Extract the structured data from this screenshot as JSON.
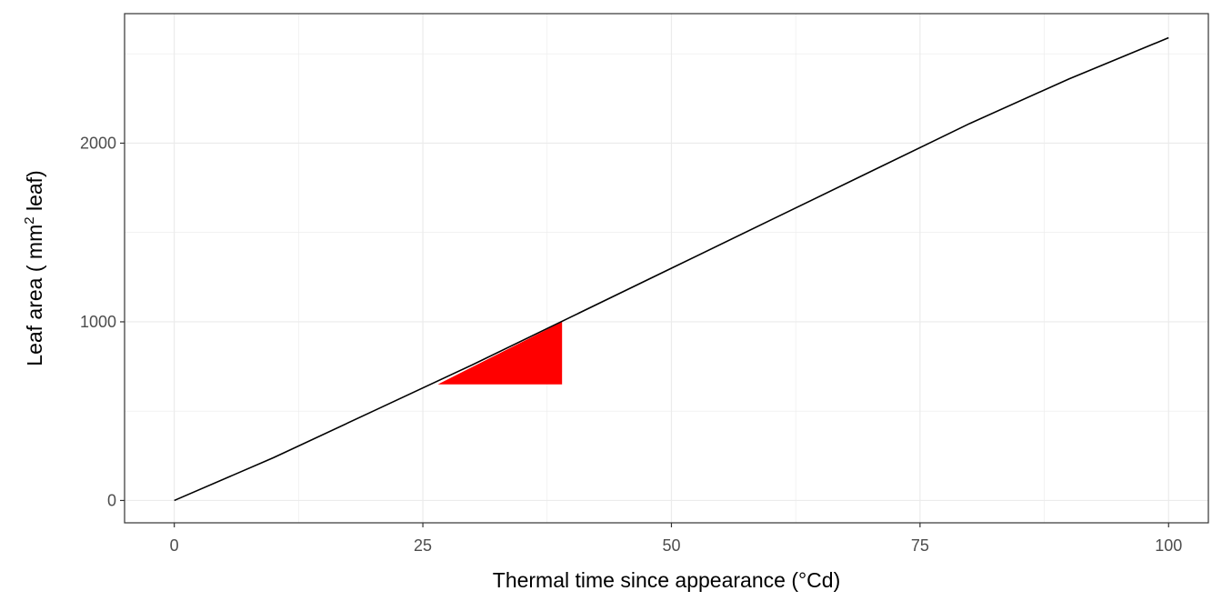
{
  "chart_data": {
    "type": "line",
    "xlabel": "Thermal time since appearance (°Cd)",
    "ylabel": {
      "prefix": "Leaf area ( mm",
      "superscript": "2",
      "suffix": "  leaf)"
    },
    "xlim": [
      -5,
      104
    ],
    "ylim": [
      -125,
      2725
    ],
    "x_ticks": [
      0,
      25,
      50,
      75,
      100
    ],
    "y_ticks": [
      0,
      1000,
      2000
    ],
    "grid": true,
    "series": [
      {
        "color": "#000000",
        "x": [
          0,
          10,
          20,
          30,
          40,
          50,
          60,
          70,
          80,
          90,
          100
        ],
        "y": [
          0,
          240,
          500,
          760,
          1030,
          1300,
          1570,
          1840,
          2110,
          2360,
          2590
        ]
      }
    ],
    "annotations": [
      {
        "type": "right-triangle",
        "color": "#ff0000",
        "points": [
          [
            26.5,
            650
          ],
          [
            39.0,
            650
          ],
          [
            39.0,
            1000
          ]
        ]
      }
    ]
  }
}
